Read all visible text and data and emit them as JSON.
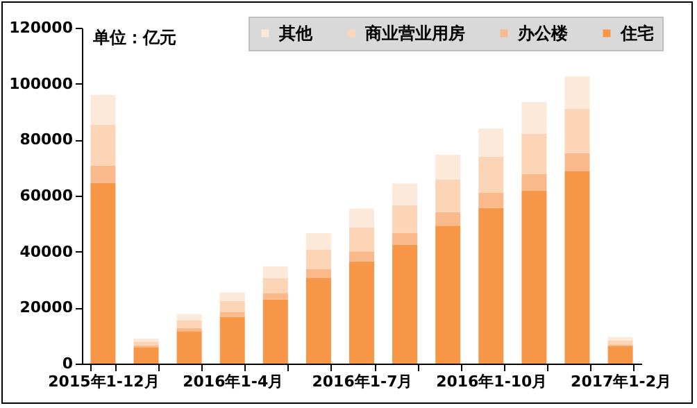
{
  "chart_data": {
    "type": "bar",
    "stacked": true,
    "annotations": [
      "单位：亿元"
    ],
    "categories": [
      "2015年1-12月",
      null,
      null,
      "2016年1-4月",
      null,
      null,
      "2016年1-7月",
      null,
      null,
      "2016年1-10月",
      null,
      null,
      "2017年1-2月"
    ],
    "series": [
      {
        "name": "住宅",
        "color": "#f79646",
        "values": [
          64600,
          5900,
          11600,
          16700,
          22900,
          30700,
          36500,
          42500,
          49300,
          55600,
          61800,
          68700,
          6200
        ]
      },
      {
        "name": "办公楼",
        "color": "#f9b98a",
        "values": [
          6200,
          600,
          1100,
          1700,
          2300,
          3000,
          3600,
          4200,
          4900,
          5400,
          6000,
          6500,
          600
        ]
      },
      {
        "name": "商业营业用房",
        "color": "#fbd5b5",
        "values": [
          14600,
          1400,
          2800,
          3900,
          5300,
          7100,
          8500,
          9900,
          11500,
          12900,
          14400,
          15800,
          1500
        ]
      },
      {
        "name": "其他",
        "color": "#fde9d9",
        "values": [
          10600,
          1000,
          2200,
          3100,
          4300,
          5800,
          6800,
          7800,
          8900,
          10100,
          11200,
          11600,
          1200
        ]
      }
    ],
    "ylim": [
      0,
      120000
    ],
    "yticks": [
      0,
      20000,
      40000,
      60000,
      80000,
      100000,
      120000
    ],
    "grid": false,
    "legend": "top"
  }
}
